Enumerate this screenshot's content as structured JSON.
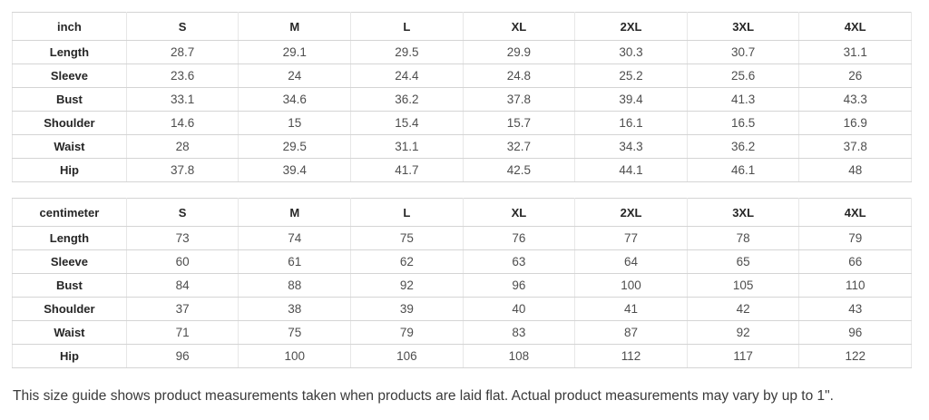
{
  "tables": [
    {
      "unit_label": "inch",
      "sizes": [
        "S",
        "M",
        "L",
        "XL",
        "2XL",
        "3XL",
        "4XL"
      ],
      "rows": [
        {
          "label": "Length",
          "values": [
            "28.7",
            "29.1",
            "29.5",
            "29.9",
            "30.3",
            "30.7",
            "31.1"
          ]
        },
        {
          "label": "Sleeve",
          "values": [
            "23.6",
            "24",
            "24.4",
            "24.8",
            "25.2",
            "25.6",
            "26"
          ]
        },
        {
          "label": "Bust",
          "values": [
            "33.1",
            "34.6",
            "36.2",
            "37.8",
            "39.4",
            "41.3",
            "43.3"
          ]
        },
        {
          "label": "Shoulder",
          "values": [
            "14.6",
            "15",
            "15.4",
            "15.7",
            "16.1",
            "16.5",
            "16.9"
          ]
        },
        {
          "label": "Waist",
          "values": [
            "28",
            "29.5",
            "31.1",
            "32.7",
            "34.3",
            "36.2",
            "37.8"
          ]
        },
        {
          "label": "Hip",
          "values": [
            "37.8",
            "39.4",
            "41.7",
            "42.5",
            "44.1",
            "46.1",
            "48"
          ]
        }
      ]
    },
    {
      "unit_label": "centimeter",
      "sizes": [
        "S",
        "M",
        "L",
        "XL",
        "2XL",
        "3XL",
        "4XL"
      ],
      "rows": [
        {
          "label": "Length",
          "values": [
            "73",
            "74",
            "75",
            "76",
            "77",
            "78",
            "79"
          ]
        },
        {
          "label": "Sleeve",
          "values": [
            "60",
            "61",
            "62",
            "63",
            "64",
            "65",
            "66"
          ]
        },
        {
          "label": "Bust",
          "values": [
            "84",
            "88",
            "92",
            "96",
            "100",
            "105",
            "110"
          ]
        },
        {
          "label": "Shoulder",
          "values": [
            "37",
            "38",
            "39",
            "40",
            "41",
            "42",
            "43"
          ]
        },
        {
          "label": "Waist",
          "values": [
            "71",
            "75",
            "79",
            "83",
            "87",
            "92",
            "96"
          ]
        },
        {
          "label": "Hip",
          "values": [
            "96",
            "100",
            "106",
            "108",
            "112",
            "117",
            "122"
          ]
        }
      ]
    }
  ],
  "footer": {
    "note": "This size guide shows product measurements taken when products are laid flat. Actual product measurements may vary by up to 1\"."
  },
  "colors": {
    "background": "#ffffff",
    "border_horizontal": "#d4d4d4",
    "border_vertical": "#e7e7e7",
    "header_text": "#262626",
    "value_text": "#4e4e4e",
    "note_text": "#3a3a3a"
  }
}
